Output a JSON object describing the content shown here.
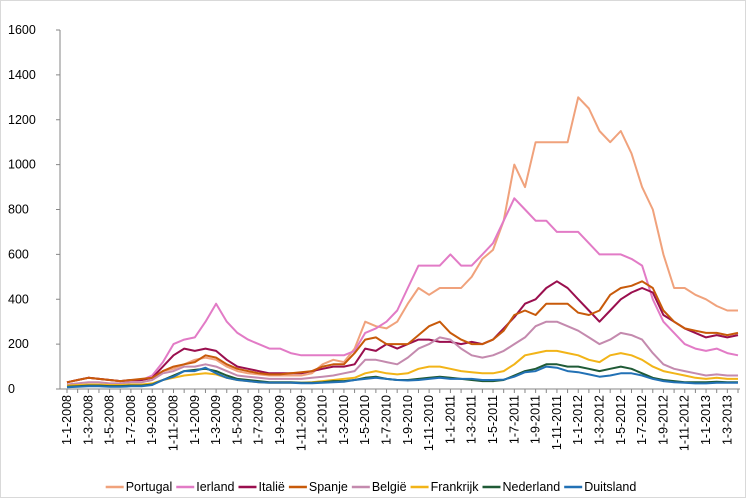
{
  "chart_data": {
    "type": "line",
    "ylim": [
      0,
      1600
    ],
    "yticks": [
      0,
      200,
      400,
      600,
      800,
      1000,
      1200,
      1400,
      1600
    ],
    "grid": false,
    "legend": "bottom",
    "categories": [
      "1-1-2008",
      null,
      "1-3-2008",
      null,
      "1-5-2008",
      null,
      "1-7-2008",
      null,
      "1-9-2008",
      null,
      "1-11-2008",
      null,
      "1-1-2009",
      null,
      "1-3-2009",
      null,
      "1-5-2009",
      null,
      "1-7-2009",
      null,
      "1-9-2009",
      null,
      "1-11-2009",
      null,
      "1-1-2010",
      null,
      "1-3-2010",
      null,
      "1-5-2010",
      null,
      "1-7-2010",
      null,
      "1-9-2010",
      null,
      "1-11-2010",
      null,
      "1-1-2011",
      null,
      "1-3-2011",
      null,
      "1-5-2011",
      null,
      "1-7-2011",
      null,
      "1-9-2011",
      null,
      "1-11-2011",
      null,
      "1-1-2012",
      null,
      "1-3-2012",
      null,
      "1-5-2012",
      null,
      "1-7-2012",
      null,
      "1-9-2012",
      null,
      "1-11-2012",
      null,
      "1-1-2013",
      null,
      "1-3-2013",
      null
    ],
    "series": [
      {
        "name": "Portugal",
        "color": "#f0a27c",
        "values": [
          30,
          40,
          50,
          45,
          40,
          35,
          35,
          40,
          50,
          80,
          90,
          110,
          130,
          140,
          130,
          100,
          80,
          70,
          65,
          60,
          60,
          60,
          60,
          70,
          110,
          130,
          120,
          180,
          300,
          280,
          270,
          300,
          380,
          450,
          420,
          450,
          450,
          450,
          500,
          580,
          620,
          750,
          1000,
          900,
          1100,
          1100,
          1100,
          1100,
          1300,
          1250,
          1150,
          1100,
          1150,
          1050,
          900,
          800,
          600,
          450,
          450,
          420,
          400,
          370,
          350,
          350
        ]
      },
      {
        "name": "Ierland",
        "color": "#e27bc6",
        "values": [
          30,
          40,
          50,
          45,
          40,
          35,
          35,
          40,
          60,
          120,
          200,
          220,
          230,
          300,
          380,
          300,
          250,
          220,
          200,
          180,
          180,
          160,
          150,
          150,
          150,
          150,
          150,
          170,
          250,
          270,
          300,
          350,
          450,
          550,
          550,
          550,
          600,
          550,
          550,
          600,
          650,
          750,
          850,
          800,
          750,
          750,
          700,
          700,
          700,
          650,
          600,
          600,
          600,
          580,
          550,
          400,
          300,
          250,
          200,
          180,
          170,
          180,
          160,
          150
        ]
      },
      {
        "name": "Italië",
        "color": "#9a0f4e",
        "values": [
          30,
          40,
          50,
          45,
          40,
          35,
          40,
          40,
          50,
          100,
          150,
          180,
          170,
          180,
          170,
          130,
          100,
          90,
          80,
          70,
          70,
          70,
          70,
          80,
          90,
          100,
          100,
          110,
          180,
          170,
          200,
          180,
          200,
          220,
          220,
          210,
          210,
          200,
          210,
          200,
          220,
          270,
          320,
          380,
          400,
          450,
          480,
          450,
          400,
          350,
          300,
          350,
          400,
          430,
          450,
          430,
          330,
          300,
          270,
          250,
          230,
          240,
          230,
          240
        ]
      },
      {
        "name": "Spanje",
        "color": "#c85a0a",
        "values": [
          30,
          40,
          50,
          45,
          40,
          35,
          40,
          45,
          50,
          80,
          100,
          110,
          120,
          150,
          140,
          110,
          90,
          80,
          70,
          65,
          65,
          70,
          75,
          80,
          100,
          110,
          110,
          160,
          220,
          230,
          200,
          200,
          200,
          240,
          280,
          300,
          250,
          220,
          200,
          200,
          220,
          260,
          330,
          350,
          330,
          380,
          380,
          380,
          340,
          330,
          350,
          420,
          450,
          460,
          480,
          450,
          350,
          300,
          270,
          260,
          250,
          250,
          240,
          250
        ]
      },
      {
        "name": "België",
        "color": "#c48aae",
        "values": [
          20,
          25,
          30,
          30,
          25,
          25,
          30,
          30,
          40,
          70,
          80,
          100,
          100,
          110,
          100,
          80,
          60,
          55,
          50,
          45,
          45,
          45,
          45,
          50,
          55,
          60,
          70,
          80,
          130,
          130,
          120,
          110,
          140,
          180,
          200,
          230,
          220,
          180,
          150,
          140,
          150,
          170,
          200,
          230,
          280,
          300,
          300,
          280,
          260,
          230,
          200,
          220,
          250,
          240,
          220,
          160,
          110,
          90,
          80,
          70,
          60,
          65,
          60,
          60
        ]
      },
      {
        "name": "Frankrijk",
        "color": "#f2b418",
        "values": [
          15,
          18,
          20,
          20,
          18,
          18,
          20,
          20,
          25,
          40,
          50,
          60,
          65,
          70,
          65,
          50,
          40,
          35,
          30,
          28,
          28,
          28,
          28,
          30,
          35,
          40,
          45,
          50,
          70,
          80,
          70,
          65,
          70,
          90,
          100,
          100,
          90,
          80,
          75,
          70,
          70,
          80,
          110,
          150,
          160,
          170,
          170,
          160,
          150,
          130,
          120,
          150,
          160,
          150,
          130,
          100,
          80,
          70,
          60,
          50,
          45,
          50,
          45,
          45
        ]
      },
      {
        "name": "Nederland",
        "color": "#1f5a36",
        "values": [
          10,
          12,
          15,
          15,
          13,
          13,
          15,
          15,
          20,
          40,
          60,
          80,
          85,
          90,
          80,
          60,
          45,
          40,
          35,
          30,
          30,
          30,
          28,
          28,
          30,
          35,
          35,
          40,
          50,
          55,
          45,
          40,
          40,
          45,
          50,
          55,
          50,
          45,
          40,
          35,
          35,
          40,
          60,
          80,
          90,
          110,
          110,
          100,
          100,
          90,
          80,
          90,
          100,
          90,
          70,
          50,
          40,
          35,
          30,
          30,
          30,
          32,
          30,
          30
        ]
      },
      {
        "name": "Duitsland",
        "color": "#2271b5",
        "values": [
          8,
          10,
          12,
          12,
          10,
          10,
          12,
          12,
          18,
          40,
          55,
          80,
          80,
          95,
          70,
          50,
          40,
          35,
          30,
          28,
          28,
          28,
          26,
          26,
          28,
          30,
          32,
          40,
          45,
          50,
          45,
          40,
          38,
          40,
          45,
          50,
          45,
          45,
          45,
          40,
          40,
          42,
          55,
          75,
          80,
          100,
          95,
          80,
          75,
          65,
          55,
          60,
          70,
          70,
          60,
          45,
          35,
          30,
          28,
          25,
          25,
          28,
          28,
          28
        ]
      }
    ]
  }
}
